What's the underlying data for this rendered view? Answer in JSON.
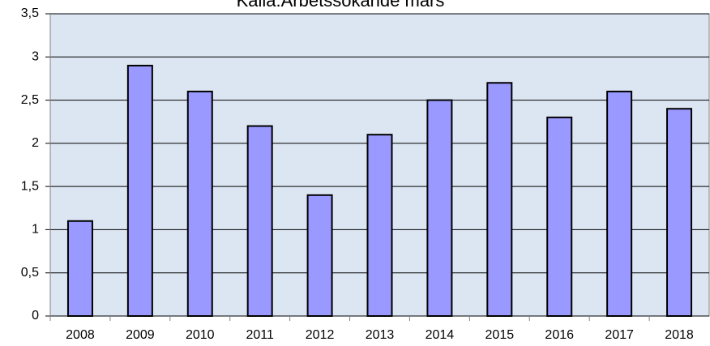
{
  "chart_data": {
    "type": "bar",
    "title": "Kalla:Arbetssökande mars",
    "categories": [
      "2008",
      "2009",
      "2010",
      "2011",
      "2012",
      "2013",
      "2014",
      "2015",
      "2016",
      "2017",
      "2018"
    ],
    "values": [
      1.1,
      2.9,
      2.6,
      2.2,
      1.4,
      2.1,
      2.5,
      2.7,
      2.3,
      2.6,
      2.4
    ],
    "color": "#9999ff",
    "ylim": [
      0,
      3.5
    ],
    "yticks": [
      0,
      {
        "value": 0.5,
        "label": "0,5"
      },
      1,
      {
        "value": 1.5,
        "label": "1,5"
      },
      2,
      {
        "value": 2.5,
        "label": "2,5"
      },
      3,
      {
        "value": 3.5,
        "label": "3,5"
      }
    ],
    "grid": true
  }
}
